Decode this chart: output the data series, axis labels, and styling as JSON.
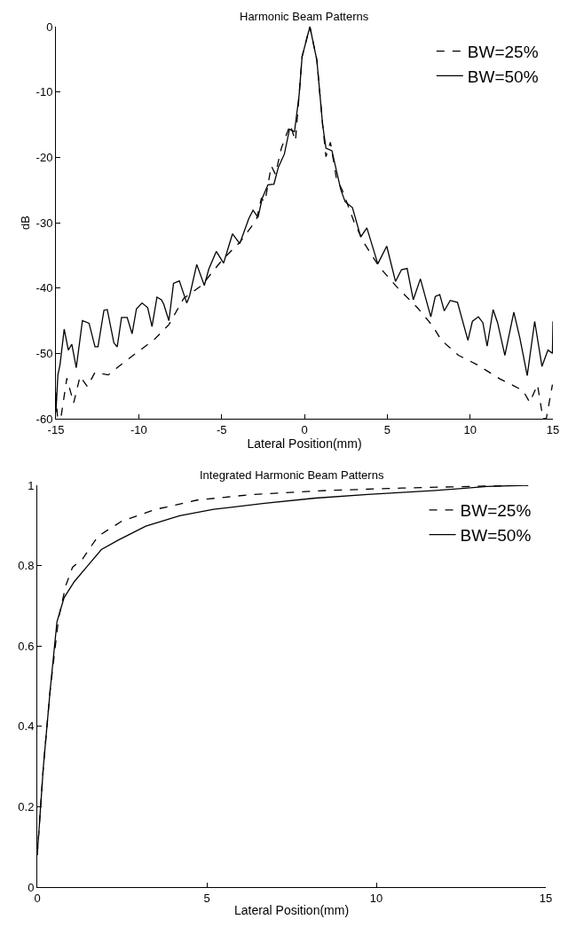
{
  "chart_data": [
    {
      "type": "line",
      "title": "Harmonic Beam Patterns",
      "xlabel": "Lateral Position(mm)",
      "ylabel": "dB",
      "xlim": [
        -15,
        15
      ],
      "xticks": [
        -15,
        -10,
        -5,
        0,
        5,
        10,
        15
      ],
      "ylim": [
        -60,
        0
      ],
      "yticks": [
        -60,
        -50,
        -40,
        -30,
        -20,
        -10,
        0
      ],
      "legend": "top right",
      "marker": "none",
      "series": [
        {
          "name": "BW=25%",
          "color": "#000000",
          "line_style": "dashed",
          "x": [
            -15,
            -14.9,
            -14.7,
            -14.34,
            -13.93,
            -13.54,
            -13.1,
            -12.64,
            -11.84,
            -10.86,
            -9.07,
            -8.18,
            -7.29,
            -6.2,
            -4.96,
            -3.9,
            -2.9,
            -2.6,
            -2.38,
            -2.0,
            -1.75,
            -1.39,
            -0.86,
            -0.54,
            -0.32,
            -0.14,
            0.33,
            0.75,
            1.1,
            1.3,
            1.57,
            1.93,
            2.28,
            3.0,
            3.6,
            4.5,
            5.6,
            6.85,
            7.74,
            8.27,
            9.3,
            10.4,
            11.8,
            12.5,
            13.2,
            13.6,
            14.07,
            14.4,
            14.6,
            14.97
          ],
          "values": [
            -56,
            -60,
            -59.9,
            -53.8,
            -57.6,
            -53.5,
            -55.1,
            -52.9,
            -53.3,
            -51.3,
            -47.9,
            -45.6,
            -41.6,
            -39.6,
            -35.7,
            -33,
            -29.6,
            -26.3,
            -26.8,
            -21.3,
            -22.6,
            -18.6,
            -15,
            -17.5,
            -10.5,
            -4.6,
            0,
            -5.1,
            -15,
            -19.9,
            -17.7,
            -23.2,
            -25,
            -29.9,
            -33.1,
            -36.7,
            -39.9,
            -43.1,
            -45.8,
            -48,
            -50.3,
            -51.7,
            -53.9,
            -54.8,
            -55.7,
            -57.5,
            -54.8,
            -60,
            -60,
            -54.8
          ]
        },
        {
          "name": "BW=50%",
          "color": "#000000",
          "line_style": "solid",
          "x": [
            -15,
            -14.88,
            -14.75,
            -14.5,
            -14.25,
            -14.04,
            -13.77,
            -13.4,
            -13,
            -12.64,
            -12.46,
            -12.1,
            -11.9,
            -11.5,
            -11.3,
            -11.04,
            -10.7,
            -10.4,
            -10.14,
            -9.8,
            -9.46,
            -9.2,
            -8.9,
            -8.63,
            -8.49,
            -8.18,
            -7.9,
            -7.55,
            -7.1,
            -6.93,
            -6.5,
            -6.04,
            -5.77,
            -5.32,
            -4.88,
            -4.34,
            -3.9,
            -3.36,
            -3.1,
            -2.8,
            -2.55,
            -2.2,
            -1.84,
            -1.57,
            -1.21,
            -0.9,
            -0.6,
            -0.32,
            -0.14,
            0.33,
            0.75,
            1.1,
            1.3,
            1.66,
            2.2,
            2.46,
            2.9,
            3.4,
            3.77,
            4.43,
            4.97,
            5.5,
            5.86,
            6.2,
            6.57,
            7.0,
            7.63,
            7.9,
            8.17,
            8.44,
            8.8,
            9.24,
            9.87,
            10.14,
            10.5,
            10.77,
            11.03,
            11.39,
            11.66,
            12.1,
            12.64,
            13.0,
            13.45,
            13.9,
            14.34,
            14.7,
            14.97,
            15
          ],
          "values": [
            -59,
            -53.3,
            -51.7,
            -46.3,
            -49.5,
            -48.6,
            -52.2,
            -45,
            -45.4,
            -49,
            -49,
            -43.4,
            -43.3,
            -48.4,
            -49,
            -44.5,
            -44.5,
            -47,
            -43.2,
            -42.3,
            -43,
            -45.9,
            -41.4,
            -41.8,
            -42.5,
            -45,
            -39.3,
            -38.9,
            -42.3,
            -41.2,
            -36.4,
            -39.6,
            -37.1,
            -34.4,
            -36.2,
            -31.7,
            -33.2,
            -29.4,
            -28.1,
            -29.2,
            -26.3,
            -24.2,
            -24.1,
            -21.5,
            -19.5,
            -15.7,
            -16.1,
            -10.5,
            -4.6,
            0,
            -5.1,
            -15,
            -18.6,
            -19,
            -25,
            -26.8,
            -27.7,
            -32.2,
            -30.8,
            -36.3,
            -33.6,
            -39,
            -37.2,
            -37,
            -41.8,
            -38.6,
            -44.4,
            -41.3,
            -41,
            -43.5,
            -41.9,
            -42.2,
            -48,
            -45.1,
            -44.4,
            -45.3,
            -48.9,
            -43.3,
            -45.3,
            -50.3,
            -43.7,
            -47.6,
            -53.4,
            -45.1,
            -52,
            -49.5,
            -50,
            -45.1
          ]
        }
      ]
    },
    {
      "type": "line",
      "title": "Integrated Harmonic Beam Patterns",
      "xlabel": "Lateral Position(mm)",
      "xlim": [
        0,
        15
      ],
      "xticks": [
        0,
        5,
        10,
        15
      ],
      "ylim": [
        0,
        1
      ],
      "yticks": [
        0,
        {
          "value": 0.2,
          "label": "0.2"
        },
        {
          "value": 0.4,
          "label": "0.4"
        },
        {
          "value": 0.6,
          "label": "0.6"
        },
        {
          "value": 0.8,
          "label": "0.8"
        },
        1
      ],
      "legend": "top right",
      "marker": "none",
      "series": [
        {
          "name": "BW=25%",
          "color": "#000000",
          "line_style": "dashed",
          "x": [
            0,
            0.18,
            0.38,
            0.63,
            0.84,
            1.04,
            1.34,
            1.79,
            2.5,
            3.5,
            4.71,
            6.22,
            8.24,
            10.75,
            12.77,
            14.48
          ],
          "values": [
            0.08,
            0.3,
            0.49,
            0.67,
            0.75,
            0.796,
            0.817,
            0.873,
            0.911,
            0.94,
            0.963,
            0.976,
            0.986,
            0.993,
            0.997,
            1.0
          ]
        },
        {
          "name": "BW=50%",
          "color": "#000000",
          "line_style": "solid",
          "x": [
            0,
            0.18,
            0.38,
            0.58,
            0.79,
            1.09,
            1.49,
            1.89,
            2.4,
            3.2,
            4.2,
            5.2,
            6.7,
            8.2,
            9.75,
            11.76,
            13.27,
            14.48
          ],
          "values": [
            0.08,
            0.3,
            0.49,
            0.66,
            0.72,
            0.76,
            0.8,
            0.84,
            0.864,
            0.898,
            0.924,
            0.94,
            0.955,
            0.968,
            0.977,
            0.987,
            0.997,
            1.0
          ]
        }
      ]
    }
  ]
}
